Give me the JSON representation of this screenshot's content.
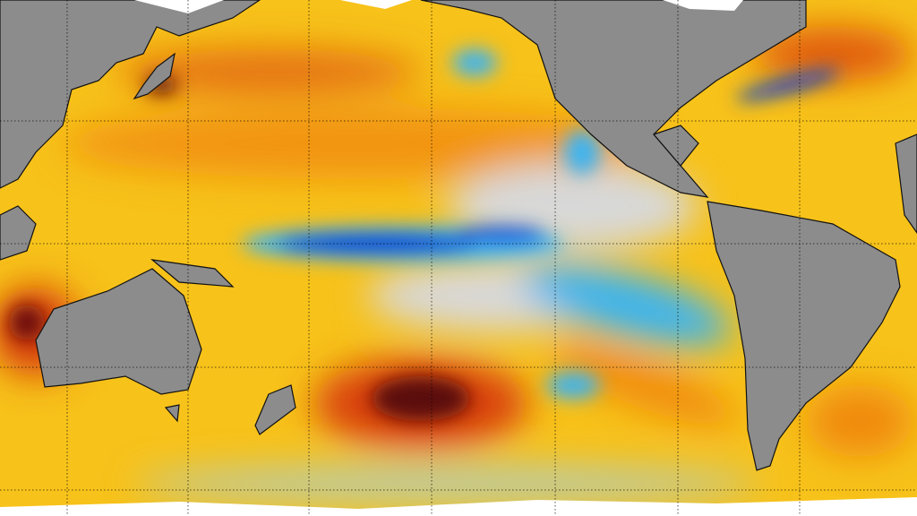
{
  "map": {
    "type": "sea-surface-temperature-anomaly",
    "projection": "equirectangular",
    "grid": true,
    "colors": {
      "ocean_base": "#f7c21a",
      "warm": "#f08a10",
      "hot": "#c8280a",
      "very_hot": "#5a0d0a",
      "neutral": "#d8d8d8",
      "cool": "#3cb4f0",
      "cold": "#1040d0",
      "land": "#8c8c8c",
      "ice": "#ffffff",
      "coastline": "#111111",
      "gridline": "#000000"
    }
  }
}
